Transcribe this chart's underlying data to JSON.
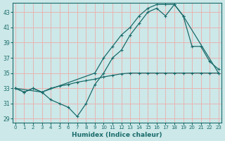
{
  "xlabel": "Humidex (Indice chaleur)",
  "bg_color": "#cce8e8",
  "grid_color": "#e8b4b4",
  "line_color": "#1a6b6b",
  "xlim": [
    -0.3,
    23.3
  ],
  "ylim": [
    28.5,
    44.2
  ],
  "xticks": [
    0,
    1,
    2,
    3,
    4,
    5,
    6,
    7,
    8,
    9,
    10,
    11,
    12,
    13,
    14,
    15,
    16,
    17,
    18,
    19,
    20,
    21,
    22,
    23
  ],
  "yticks": [
    29,
    31,
    33,
    35,
    37,
    39,
    41,
    43
  ],
  "line1_x": [
    0,
    1,
    2,
    3,
    4,
    5,
    6,
    7,
    8,
    9,
    10,
    11,
    12,
    13,
    14,
    15,
    16,
    17,
    18,
    19,
    20,
    21,
    22,
    23
  ],
  "line1_y": [
    33,
    32.5,
    33,
    32.5,
    33,
    33.3,
    33.5,
    33.8,
    34,
    34.2,
    34.5,
    34.7,
    34.9,
    35,
    35,
    35,
    35,
    35,
    35,
    35,
    35,
    35,
    35,
    35
  ],
  "line2_x": [
    0,
    1,
    2,
    3,
    9,
    10,
    11,
    12,
    13,
    14,
    15,
    16,
    17,
    18,
    19,
    23
  ],
  "line2_y": [
    33,
    32.5,
    33,
    32.5,
    35,
    37,
    38.5,
    40,
    41,
    42.5,
    43.5,
    44,
    44,
    44,
    42.5,
    35
  ],
  "line3_x": [
    0,
    3,
    4,
    5,
    6,
    7,
    8,
    9,
    10,
    11,
    12,
    13,
    14,
    15,
    16,
    17,
    18,
    19,
    20,
    21,
    22,
    23
  ],
  "line3_y": [
    33,
    32.5,
    31.5,
    31,
    30.5,
    29.3,
    31,
    33.5,
    35,
    37,
    38,
    40,
    41.5,
    43,
    43.5,
    42.5,
    44,
    42.5,
    38.5,
    38.5,
    36.5,
    35.5
  ]
}
